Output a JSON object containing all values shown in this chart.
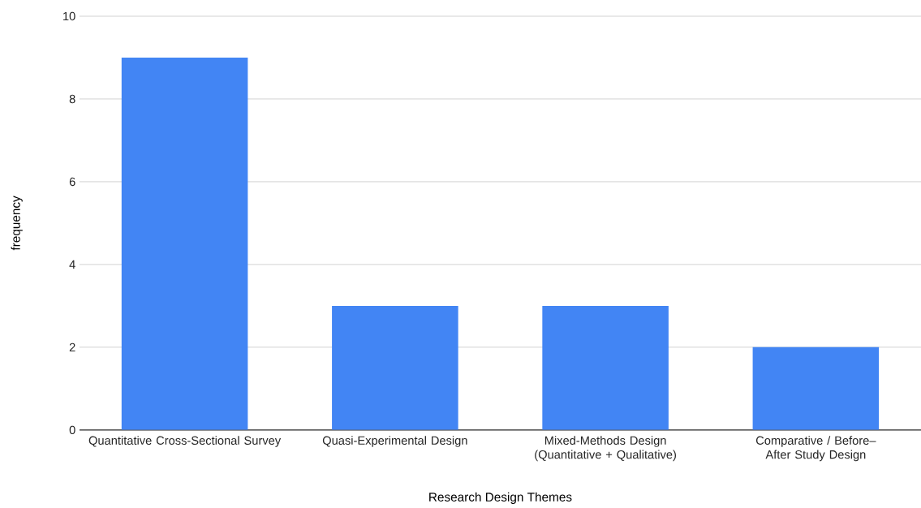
{
  "chart_data": {
    "type": "bar",
    "xlabel": "Research Design Themes",
    "ylabel": "frequency",
    "categories": [
      "Quantitative Cross-Sectional Survey",
      "Quasi-Experimental Design",
      "Mixed-Methods Design (Quantitative + Qualitative)",
      "Comparative / Before–After Study Design"
    ],
    "values": [
      9,
      3,
      3,
      2
    ],
    "color": "#4285f4",
    "ylim": [
      0,
      10
    ],
    "yticks": [
      0,
      2,
      4,
      6,
      8,
      10
    ],
    "grid": "y"
  }
}
